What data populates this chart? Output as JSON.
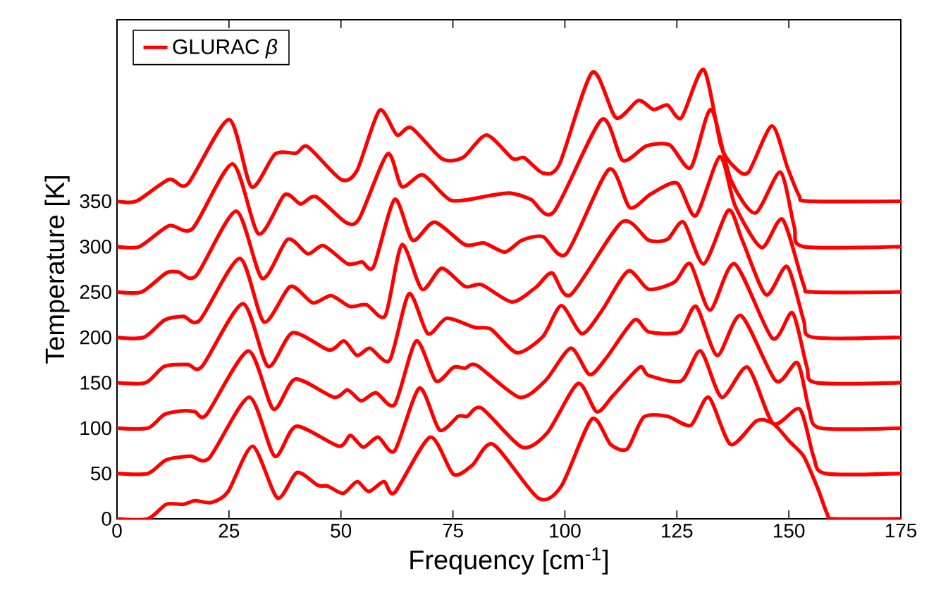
{
  "chart_data": {
    "type": "line",
    "xlabel": "Frequency [cm$^{-1}$]",
    "ylabel": "Temperature [K]",
    "xlim": [
      0,
      175
    ],
    "ylim": [
      0,
      550
    ],
    "xticks": [
      0,
      25,
      50,
      75,
      100,
      125,
      150,
      175
    ],
    "yticks": [
      0,
      50,
      100,
      150,
      200,
      250,
      300,
      350
    ],
    "legend": "top left",
    "series": [
      {
        "name": "GLURAC *β*",
        "color": "#ff0000",
        "x": [
          0,
          6.9,
          11,
          14.8,
          17.4,
          21.1,
          24.8,
          30.3,
          35.8,
          40.2,
          44.8,
          47.1,
          50.5,
          53.6,
          56.2,
          59.6,
          62,
          69.9,
          75.1,
          79.3,
          84,
          94,
          99.2,
          106,
          110.2,
          113.9,
          117.6,
          122.9,
          128.1,
          132.1,
          137,
          142.8,
          146.5,
          150.2,
          153.3,
          156.5,
          158.6,
          160.2,
          175
        ],
        "values": [
          0,
          0,
          16,
          16,
          20,
          18,
          30,
          80,
          23,
          51,
          37,
          36,
          28,
          41,
          30,
          41,
          29,
          90,
          49,
          59,
          82,
          23,
          36,
          110,
          82,
          77,
          112,
          113,
          103,
          134,
          82,
          108,
          105,
          85,
          69,
          33,
          5,
          0,
          0
        ]
      },
      {
        "color": "#ff0000",
        "x": [
          0,
          6.9,
          11,
          16.4,
          20.6,
          29.5,
          35.2,
          40,
          49.5,
          52.1,
          55,
          58.3,
          62,
          67.5,
          72,
          76.2,
          78.2,
          81.4,
          90.4,
          96.1,
          102.9,
          107.1,
          110.8,
          116.7,
          118.7,
          126,
          130.3,
          135,
          140.8,
          146.5,
          152.4,
          155.5,
          158.1,
          175
        ],
        "values": [
          50,
          50,
          65,
          69,
          67,
          134,
          69,
          102,
          80,
          92,
          79,
          90,
          75,
          144,
          98,
          113,
          113,
          122,
          79,
          95,
          149,
          118,
          136,
          167,
          158,
          152,
          185,
          134,
          167,
          105,
          121,
          69,
          50,
          50
        ]
      },
      {
        "color": "#ff0000",
        "x": [
          0,
          6.9,
          10.6,
          14.8,
          17.4,
          20,
          29.3,
          34.9,
          39.8,
          48.4,
          51.5,
          54.5,
          57.8,
          62,
          66.8,
          71.2,
          75.1,
          77.7,
          80.4,
          89.8,
          95.6,
          101.3,
          105.5,
          109.2,
          115.5,
          118.7,
          125.6,
          129.3,
          134,
          139.3,
          147.1,
          151.9,
          154.5,
          157.1,
          175
        ],
        "values": [
          100,
          100,
          115,
          119,
          118,
          115,
          185,
          121,
          154,
          134,
          142,
          130,
          139,
          126,
          196,
          152,
          167,
          166,
          169,
          134,
          152,
          188,
          159,
          177,
          219,
          206,
          206,
          234,
          180,
          224,
          152,
          172,
          121,
          100,
          100
        ]
      },
      {
        "color": "#ff0000",
        "x": [
          0,
          6.4,
          10.6,
          15.8,
          19,
          28.1,
          33.7,
          39.2,
          47.3,
          50.7,
          53.6,
          56.5,
          60.9,
          65.2,
          69.4,
          73.6,
          79.8,
          83.5,
          89.3,
          95.1,
          99.2,
          103.8,
          108.2,
          114.1,
          118.7,
          124.5,
          128,
          132.4,
          137.9,
          146.3,
          150.8,
          154,
          156.1,
          175
        ],
        "values": [
          150,
          150,
          168,
          170,
          168,
          237,
          168,
          205,
          186,
          196,
          180,
          188,
          175,
          248,
          204,
          221,
          211,
          209,
          183,
          201,
          235,
          204,
          229,
          273,
          253,
          261,
          281,
          230,
          281,
          199,
          227,
          168,
          150,
          150
        ]
      },
      {
        "color": "#ff0000",
        "x": [
          0,
          6,
          10.6,
          14.8,
          18.5,
          27.4,
          32.8,
          38.7,
          43.7,
          47.8,
          52,
          55.7,
          59.9,
          63.6,
          68.1,
          72.5,
          77.7,
          81.4,
          88.2,
          93.5,
          97.1,
          101.3,
          112.7,
          118.7,
          122.9,
          126.5,
          131,
          136.5,
          139.6,
          144.9,
          149.6,
          153.3,
          155.4,
          175
        ],
        "values": [
          200,
          200,
          219,
          223,
          219,
          287,
          217,
          256,
          238,
          246,
          234,
          236,
          224,
          302,
          253,
          276,
          256,
          258,
          239,
          255,
          271,
          247,
          327,
          307,
          308,
          327,
          281,
          340,
          307,
          247,
          278,
          219,
          200,
          200
        ]
      },
      {
        "color": "#ff0000",
        "x": [
          0,
          5.5,
          11,
          13.7,
          17.7,
          26.6,
          32.4,
          38.1,
          42.6,
          46.1,
          51.5,
          54.7,
          57.3,
          62,
          66,
          70.9,
          77.7,
          81.9,
          86.6,
          90.4,
          95.1,
          100.3,
          109.8,
          114.5,
          119.2,
          125,
          129.2,
          134.6,
          138,
          143.9,
          148.6,
          153.3,
          155.4,
          175
        ],
        "values": [
          250,
          250,
          271,
          272,
          268,
          339,
          265,
          308,
          292,
          301,
          281,
          283,
          278,
          352,
          307,
          327,
          302,
          304,
          294,
          307,
          311,
          292,
          385,
          343,
          358,
          370,
          334,
          399,
          345,
          299,
          330,
          258,
          250,
          250
        ]
      },
      {
        "color": "#ff0000",
        "x": [
          0,
          5,
          11.6,
          16.9,
          25.8,
          31.6,
          37.4,
          41,
          44.4,
          51,
          54.1,
          60.4,
          63.6,
          68.3,
          74.6,
          83,
          87.7,
          92.4,
          97.5,
          108.2,
          112.9,
          118.2,
          123.4,
          128.1,
          132.6,
          137,
          142.5,
          148.1,
          151.2,
          153.3,
          175
        ],
        "values": [
          300,
          300,
          323,
          320,
          391,
          314,
          357,
          347,
          355,
          327,
          331,
          402,
          366,
          379,
          351,
          356,
          359,
          352,
          338,
          440,
          395,
          411,
          412,
          387,
          451,
          374,
          337,
          382,
          322,
          300,
          300
        ]
      },
      {
        "color": "#ff0000",
        "x": [
          0,
          4.3,
          11.6,
          15.8,
          25,
          30,
          35.3,
          40,
          42.6,
          50,
          53.6,
          58.6,
          62.5,
          65.7,
          72.5,
          77.2,
          82.5,
          88.3,
          90.9,
          95.1,
          98.8,
          106.1,
          111.4,
          116.4,
          119.8,
          122.9,
          126,
          131,
          134.9,
          138,
          141,
          146.2,
          149.7,
          152.3,
          154.4,
          175
        ],
        "values": [
          350,
          350,
          374,
          369,
          440,
          366,
          402,
          403,
          410,
          374,
          384,
          450,
          423,
          431,
          397,
          398,
          423,
          397,
          398,
          381,
          391,
          492,
          442,
          461,
          451,
          456,
          442,
          495,
          410,
          387,
          382,
          433,
          387,
          356,
          350,
          350
        ]
      }
    ]
  }
}
